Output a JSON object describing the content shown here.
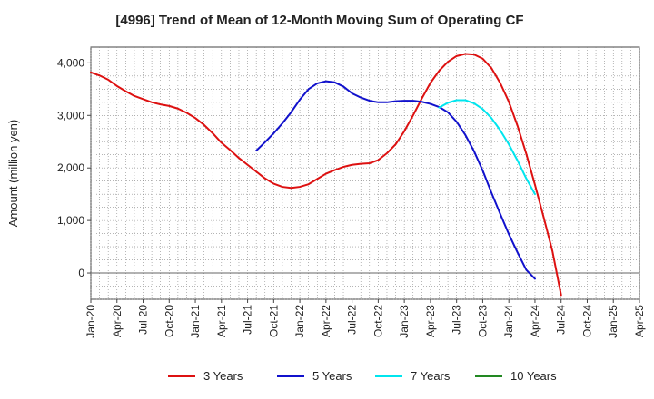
{
  "chart_data": {
    "type": "line",
    "title": "[4996]  Trend of Mean of 12-Month Moving Sum of Operating CF",
    "xlabel": "",
    "ylabel": "Amount (million yen)",
    "ylim": [
      -500,
      4300
    ],
    "y_ticks": [
      0,
      1000,
      2000,
      3000,
      4000
    ],
    "y_tick_labels": [
      "0",
      "1,000",
      "2,000",
      "3,000",
      "4,000"
    ],
    "x_range_months": [
      0,
      63
    ],
    "x_ticks": [
      {
        "m": 0,
        "label": "Jan-20"
      },
      {
        "m": 3,
        "label": "Apr-20"
      },
      {
        "m": 6,
        "label": "Jul-20"
      },
      {
        "m": 9,
        "label": "Oct-20"
      },
      {
        "m": 12,
        "label": "Jan-21"
      },
      {
        "m": 15,
        "label": "Apr-21"
      },
      {
        "m": 18,
        "label": "Jul-21"
      },
      {
        "m": 21,
        "label": "Oct-21"
      },
      {
        "m": 24,
        "label": "Jan-22"
      },
      {
        "m": 27,
        "label": "Apr-22"
      },
      {
        "m": 30,
        "label": "Jul-22"
      },
      {
        "m": 33,
        "label": "Oct-22"
      },
      {
        "m": 36,
        "label": "Jan-23"
      },
      {
        "m": 39,
        "label": "Apr-23"
      },
      {
        "m": 42,
        "label": "Jul-23"
      },
      {
        "m": 45,
        "label": "Oct-23"
      },
      {
        "m": 48,
        "label": "Jan-24"
      },
      {
        "m": 51,
        "label": "Apr-24"
      },
      {
        "m": 54,
        "label": "Jul-24"
      },
      {
        "m": 57,
        "label": "Oct-24"
      },
      {
        "m": 60,
        "label": "Jan-25"
      },
      {
        "m": 63,
        "label": "Apr-25"
      }
    ],
    "grid": true,
    "legend_position": "bottom",
    "series": [
      {
        "name": "3 Years",
        "color": "#dd1111",
        "points": [
          [
            0,
            3820
          ],
          [
            1,
            3760
          ],
          [
            2,
            3680
          ],
          [
            3,
            3560
          ],
          [
            4,
            3460
          ],
          [
            5,
            3370
          ],
          [
            6,
            3310
          ],
          [
            7,
            3250
          ],
          [
            8,
            3210
          ],
          [
            9,
            3180
          ],
          [
            10,
            3130
          ],
          [
            11,
            3050
          ],
          [
            12,
            2950
          ],
          [
            13,
            2820
          ],
          [
            14,
            2660
          ],
          [
            15,
            2480
          ],
          [
            16,
            2340
          ],
          [
            17,
            2190
          ],
          [
            18,
            2060
          ],
          [
            19,
            1930
          ],
          [
            20,
            1800
          ],
          [
            21,
            1700
          ],
          [
            22,
            1640
          ],
          [
            23,
            1620
          ],
          [
            24,
            1640
          ],
          [
            25,
            1690
          ],
          [
            26,
            1790
          ],
          [
            27,
            1890
          ],
          [
            28,
            1960
          ],
          [
            29,
            2020
          ],
          [
            30,
            2060
          ],
          [
            31,
            2080
          ],
          [
            32,
            2090
          ],
          [
            33,
            2150
          ],
          [
            34,
            2280
          ],
          [
            35,
            2450
          ],
          [
            36,
            2700
          ],
          [
            37,
            3000
          ],
          [
            38,
            3320
          ],
          [
            39,
            3620
          ],
          [
            40,
            3850
          ],
          [
            41,
            4020
          ],
          [
            42,
            4130
          ],
          [
            43,
            4170
          ],
          [
            44,
            4160
          ],
          [
            45,
            4080
          ],
          [
            46,
            3900
          ],
          [
            47,
            3620
          ],
          [
            48,
            3260
          ],
          [
            49,
            2800
          ],
          [
            50,
            2270
          ],
          [
            51,
            1680
          ],
          [
            52,
            1060
          ],
          [
            53,
            420
          ],
          [
            54,
            -420
          ]
        ]
      },
      {
        "name": "5 Years",
        "color": "#1111cc",
        "points": [
          [
            19,
            2330
          ],
          [
            20,
            2490
          ],
          [
            21,
            2660
          ],
          [
            22,
            2850
          ],
          [
            23,
            3060
          ],
          [
            24,
            3300
          ],
          [
            25,
            3500
          ],
          [
            26,
            3610
          ],
          [
            27,
            3650
          ],
          [
            28,
            3630
          ],
          [
            29,
            3550
          ],
          [
            30,
            3420
          ],
          [
            31,
            3340
          ],
          [
            32,
            3280
          ],
          [
            33,
            3250
          ],
          [
            34,
            3250
          ],
          [
            35,
            3270
          ],
          [
            36,
            3280
          ],
          [
            37,
            3280
          ],
          [
            38,
            3260
          ],
          [
            39,
            3220
          ],
          [
            40,
            3160
          ],
          [
            41,
            3060
          ],
          [
            42,
            2880
          ],
          [
            43,
            2630
          ],
          [
            44,
            2320
          ],
          [
            45,
            1950
          ],
          [
            46,
            1530
          ],
          [
            47,
            1130
          ],
          [
            48,
            740
          ],
          [
            49,
            390
          ],
          [
            50,
            60
          ],
          [
            51,
            -110
          ]
        ]
      },
      {
        "name": "7 Years",
        "color": "#00e5ee",
        "points": [
          [
            40,
            3150
          ],
          [
            41,
            3240
          ],
          [
            42,
            3290
          ],
          [
            43,
            3290
          ],
          [
            44,
            3230
          ],
          [
            45,
            3120
          ],
          [
            46,
            2950
          ],
          [
            47,
            2720
          ],
          [
            48,
            2450
          ],
          [
            49,
            2140
          ],
          [
            50,
            1800
          ],
          [
            51,
            1500
          ]
        ]
      },
      {
        "name": "10 Years",
        "color": "#228822",
        "points": []
      }
    ]
  }
}
